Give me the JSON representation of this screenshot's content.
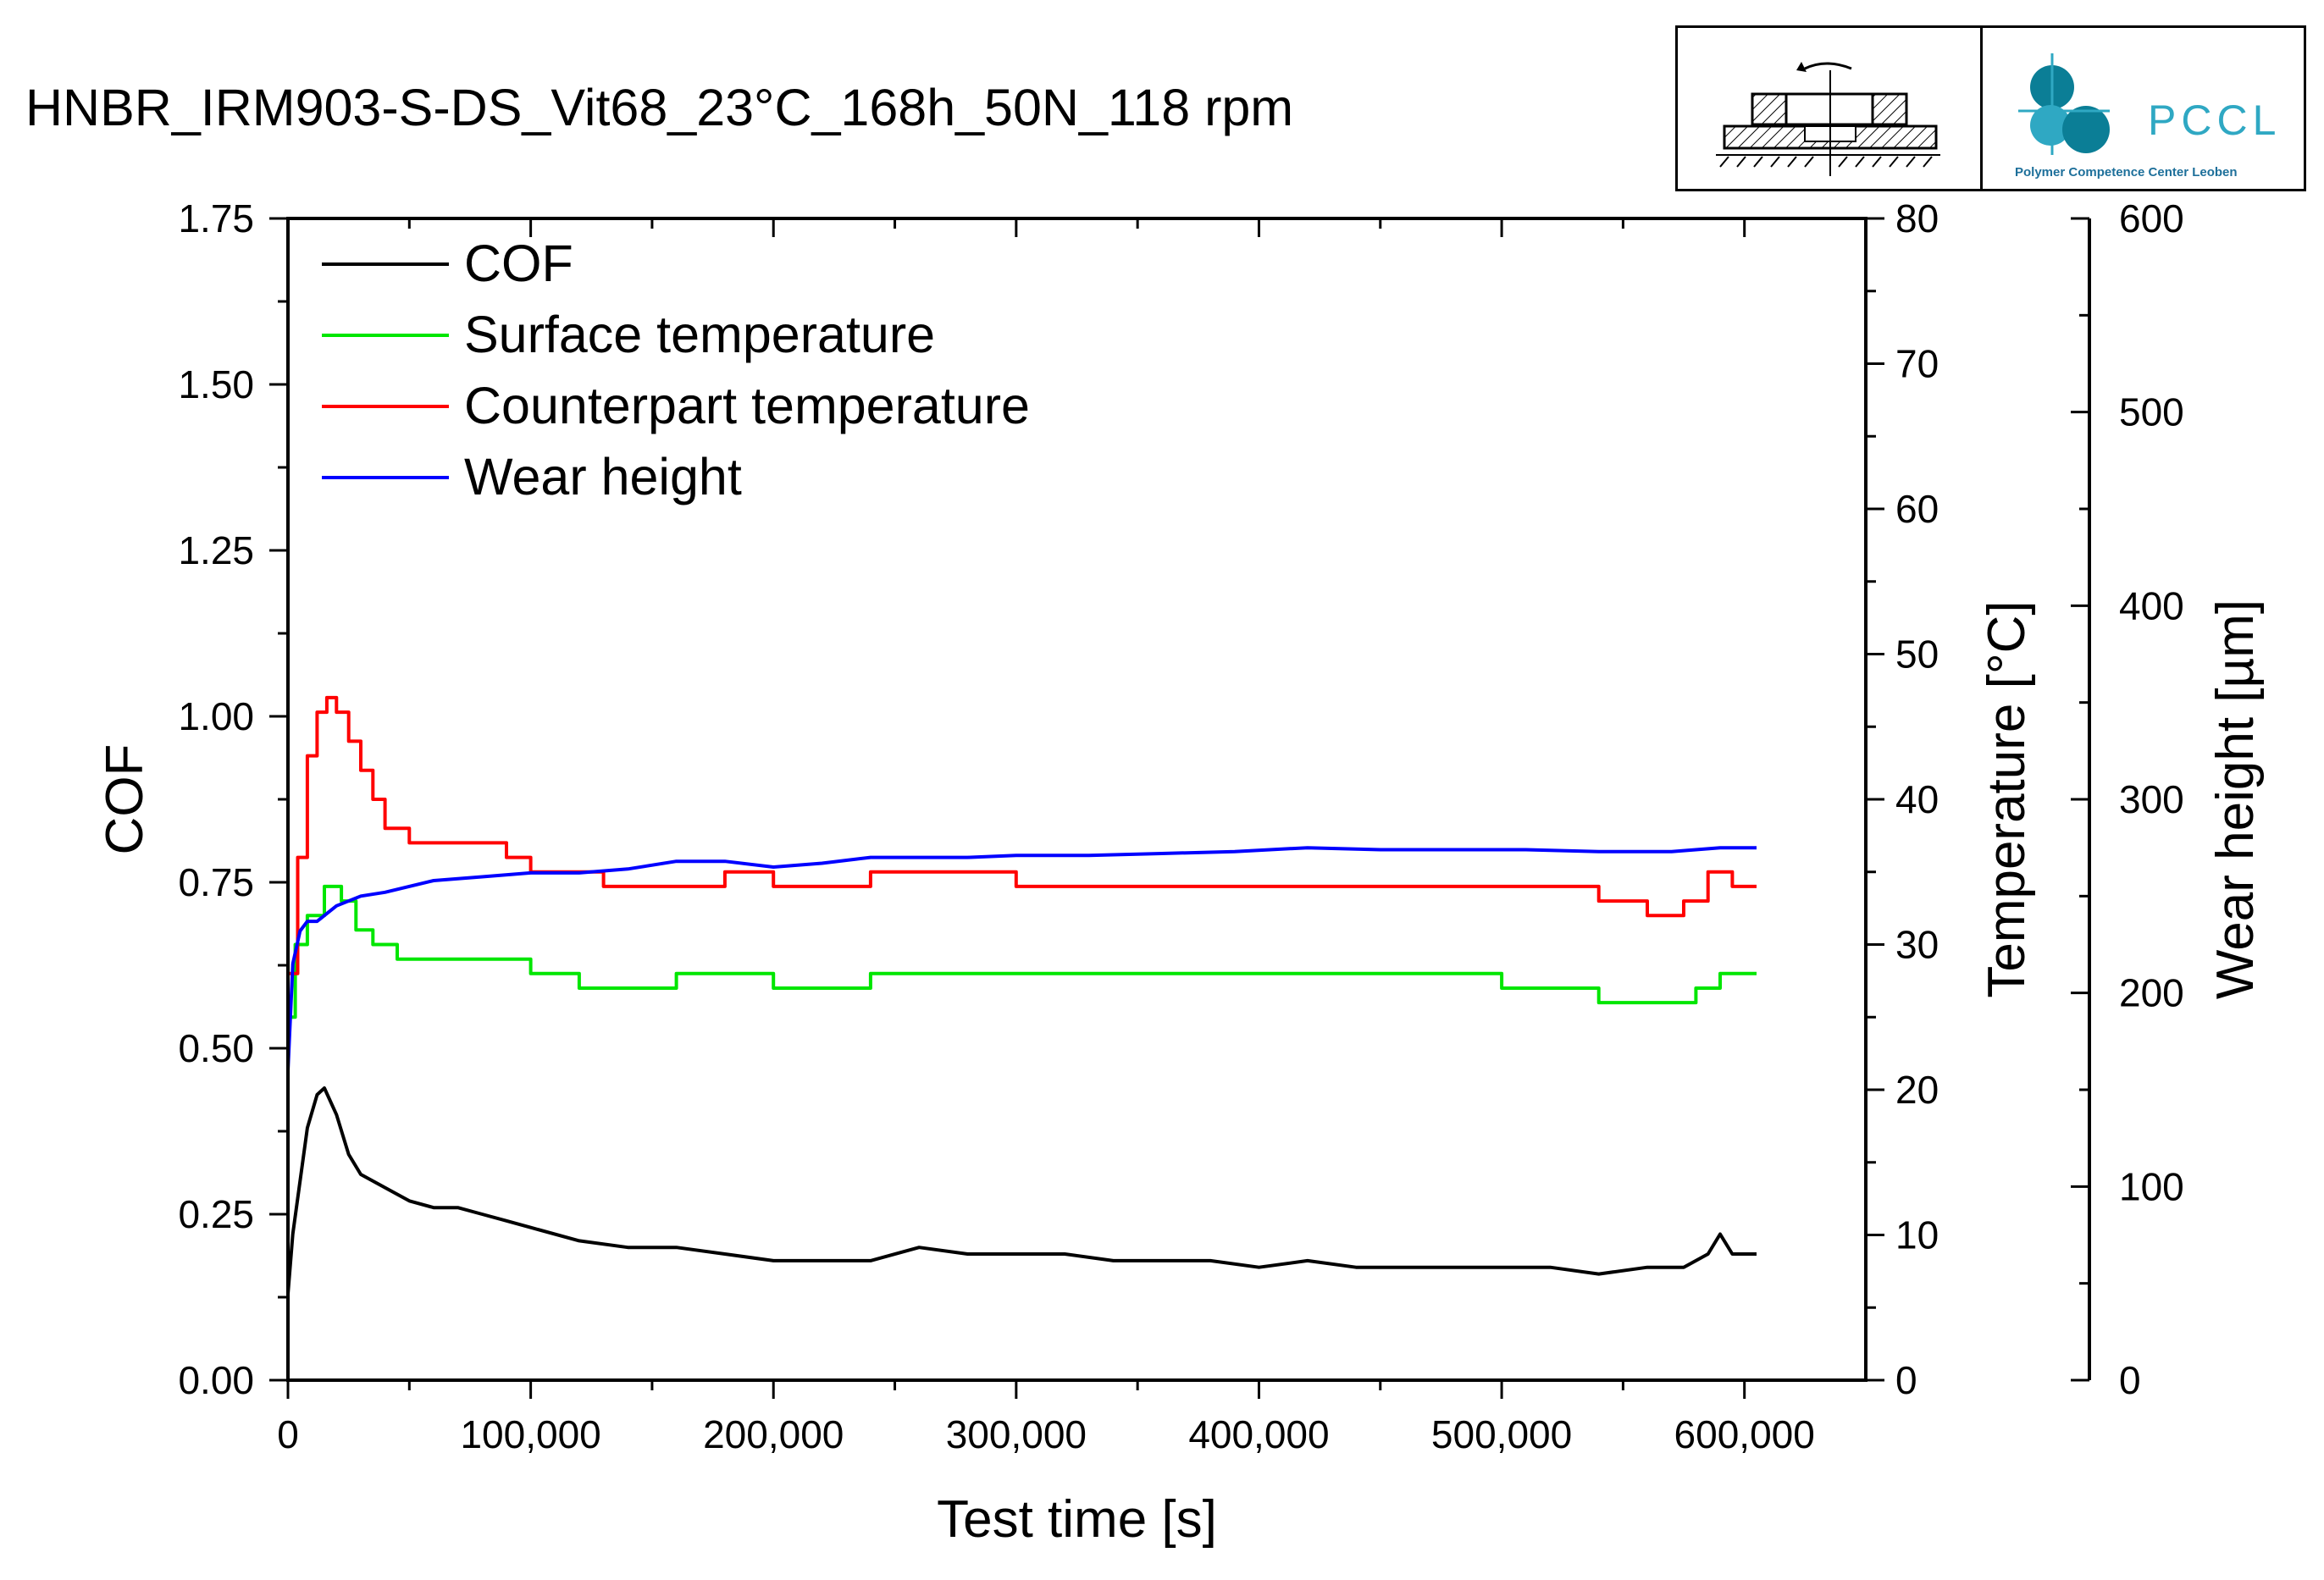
{
  "page": {
    "title": "HNBR_IRM903-S-DS_Vit68_23°C_168h_50N_118 rpm",
    "logo_text": "PCCL",
    "logo_subtitle": "Polymer Competence Center Leoben"
  },
  "colors": {
    "cof": "#000000",
    "surface": "#00e600",
    "counterpart": "#ff0000",
    "wear": "#0000ff",
    "logo_accent": "#2fa8c3",
    "logo_dark": "#0b7e96"
  },
  "chart_data": {
    "type": "line",
    "title": "HNBR_IRM903-S-DS_Vit68_23°C_168h_50N_118 rpm",
    "xlabel": "Test time [s]",
    "xlim": [
      0,
      650000
    ],
    "x_ticks": [
      0,
      100000,
      200000,
      300000,
      400000,
      500000,
      600000
    ],
    "x_tick_labels": [
      "0",
      "100,000",
      "200,000",
      "300,000",
      "400,000",
      "500,000",
      "600,000"
    ],
    "axes": [
      {
        "id": "cof",
        "label": "COF",
        "position": "left",
        "range": [
          0,
          1.75
        ],
        "ticks": [
          0,
          0.25,
          0.5,
          0.75,
          1.0,
          1.25,
          1.5,
          1.75
        ],
        "tick_labels": [
          "0.00",
          "0.25",
          "0.50",
          "0.75",
          "1.00",
          "1.25",
          "1.50",
          "1.75"
        ]
      },
      {
        "id": "temp",
        "label": "Temperature [°C]",
        "position": "right",
        "range": [
          0,
          80
        ],
        "ticks": [
          0,
          10,
          20,
          30,
          40,
          50,
          60,
          70,
          80
        ],
        "tick_labels": [
          "0",
          "10",
          "20",
          "30",
          "40",
          "50",
          "60",
          "70",
          "80"
        ]
      },
      {
        "id": "wear",
        "label": "Wear height [µm]",
        "position": "right-outer",
        "range": [
          0,
          600
        ],
        "ticks": [
          0,
          100,
          200,
          300,
          400,
          500,
          600
        ],
        "tick_labels": [
          "0",
          "100",
          "200",
          "300",
          "400",
          "500",
          "600"
        ]
      }
    ],
    "legend": {
      "placement": "top-left"
    },
    "series": [
      {
        "name": "COF",
        "axis": "cof",
        "color": "#000000",
        "x": [
          0,
          2000,
          5000,
          8000,
          12000,
          15000,
          20000,
          25000,
          30000,
          40000,
          50000,
          60000,
          70000,
          80000,
          90000,
          100000,
          120000,
          140000,
          160000,
          180000,
          200000,
          220000,
          240000,
          260000,
          280000,
          300000,
          320000,
          340000,
          360000,
          380000,
          400000,
          420000,
          440000,
          460000,
          480000,
          500000,
          510000,
          520000,
          540000,
          560000,
          575000,
          585000,
          590000,
          595000,
          605000
        ],
        "y": [
          0.13,
          0.22,
          0.3,
          0.38,
          0.43,
          0.44,
          0.4,
          0.34,
          0.31,
          0.29,
          0.27,
          0.26,
          0.26,
          0.25,
          0.24,
          0.23,
          0.21,
          0.2,
          0.2,
          0.19,
          0.18,
          0.18,
          0.18,
          0.2,
          0.19,
          0.19,
          0.19,
          0.18,
          0.18,
          0.18,
          0.17,
          0.18,
          0.17,
          0.17,
          0.17,
          0.17,
          0.17,
          0.17,
          0.16,
          0.17,
          0.17,
          0.19,
          0.22,
          0.19,
          0.19
        ]
      },
      {
        "name": "Surface temperature",
        "axis": "temp",
        "color": "#00e600",
        "x": [
          0,
          3000,
          8000,
          15000,
          22000,
          28000,
          35000,
          45000,
          60000,
          80000,
          100000,
          120000,
          140000,
          160000,
          180000,
          200000,
          220000,
          240000,
          260000,
          290000,
          380000,
          420000,
          500000,
          540000,
          570000,
          580000,
          590000,
          605000
        ],
        "y": [
          25,
          30,
          32,
          34,
          33,
          31,
          30,
          29,
          29,
          29,
          28,
          27,
          27,
          28,
          28,
          27,
          27,
          28,
          28,
          28,
          28,
          28,
          27,
          26,
          26,
          27,
          28,
          28
        ]
      },
      {
        "name": "Counterpart temperature",
        "axis": "temp",
        "color": "#ff0000",
        "x": [
          0,
          4000,
          8000,
          12000,
          16000,
          20000,
          25000,
          30000,
          35000,
          40000,
          50000,
          60000,
          80000,
          90000,
          100000,
          110000,
          130000,
          160000,
          180000,
          200000,
          230000,
          240000,
          280000,
          300000,
          340000,
          380000,
          420000,
          480000,
          520000,
          540000,
          560000,
          575000,
          585000,
          595000,
          605000
        ],
        "y": [
          28,
          36,
          43,
          46,
          47,
          46,
          44,
          42,
          40,
          38,
          37,
          37,
          37,
          36,
          35,
          35,
          34,
          34,
          35,
          34,
          34,
          35,
          35,
          34,
          34,
          34,
          34,
          34,
          34,
          33,
          32,
          33,
          35,
          34,
          34
        ]
      },
      {
        "name": "Wear height",
        "axis": "wear",
        "color": "#0000ff",
        "x": [
          0,
          2000,
          5000,
          8000,
          12000,
          20000,
          30000,
          40000,
          60000,
          80000,
          100000,
          120000,
          140000,
          160000,
          180000,
          200000,
          220000,
          240000,
          260000,
          280000,
          300000,
          330000,
          360000,
          390000,
          420000,
          450000,
          480000,
          510000,
          540000,
          570000,
          590000,
          605000
        ],
        "y": [
          160,
          215,
          232,
          237,
          237,
          245,
          250,
          252,
          258,
          260,
          262,
          262,
          264,
          268,
          268,
          265,
          267,
          270,
          270,
          270,
          271,
          271,
          272,
          273,
          275,
          274,
          274,
          274,
          273,
          273,
          275,
          275
        ]
      }
    ]
  }
}
